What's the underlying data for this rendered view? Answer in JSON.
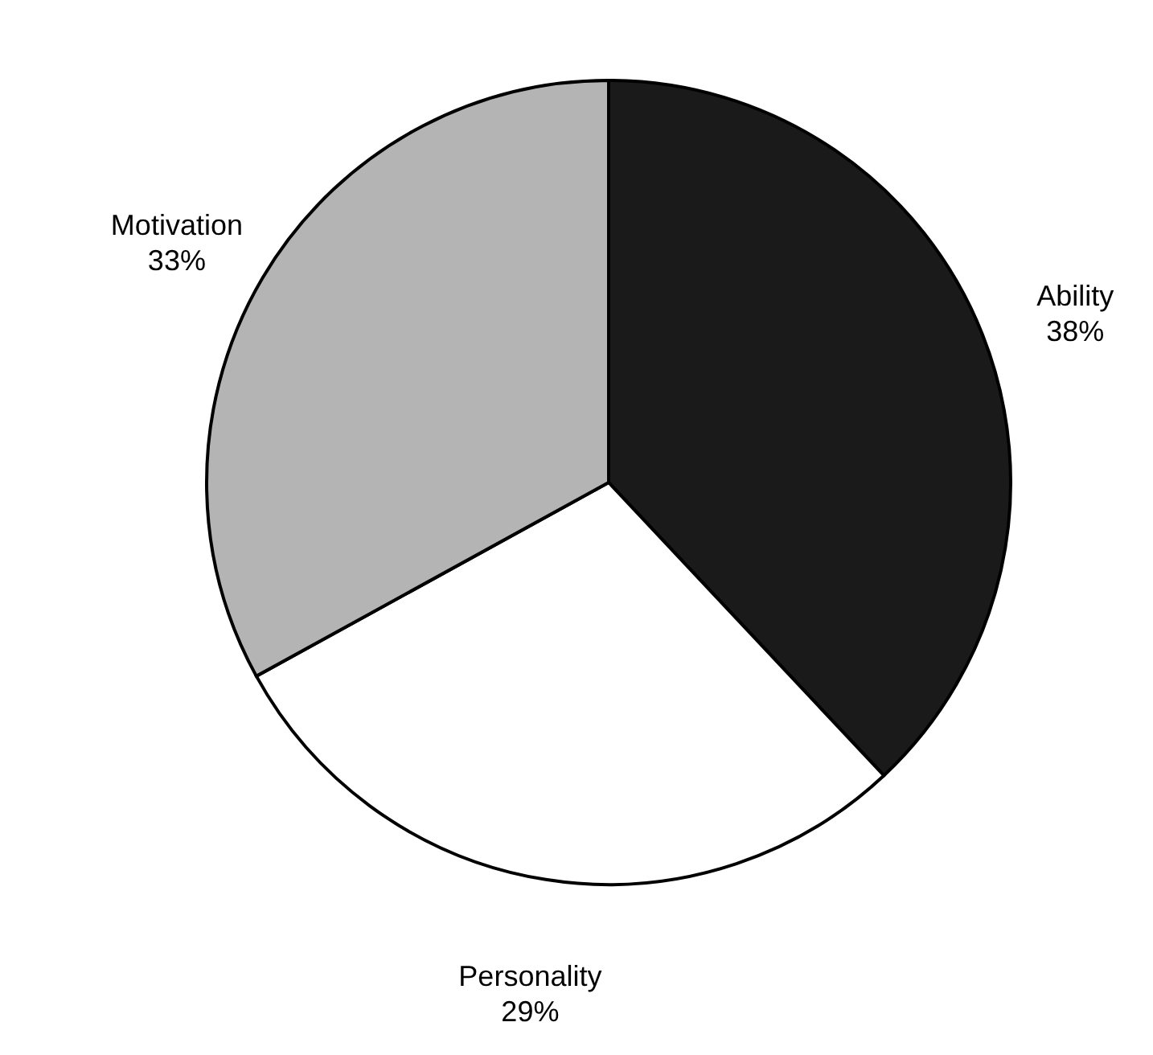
{
  "chart_data": {
    "type": "pie",
    "categories": [
      "Ability",
      "Personality",
      "Motivation"
    ],
    "values": [
      38,
      29,
      33
    ],
    "value_labels": [
      "38%",
      "29%",
      "33%"
    ],
    "colors": [
      "#1a1a1a",
      "#ffffff",
      "#b4b4b4"
    ]
  }
}
